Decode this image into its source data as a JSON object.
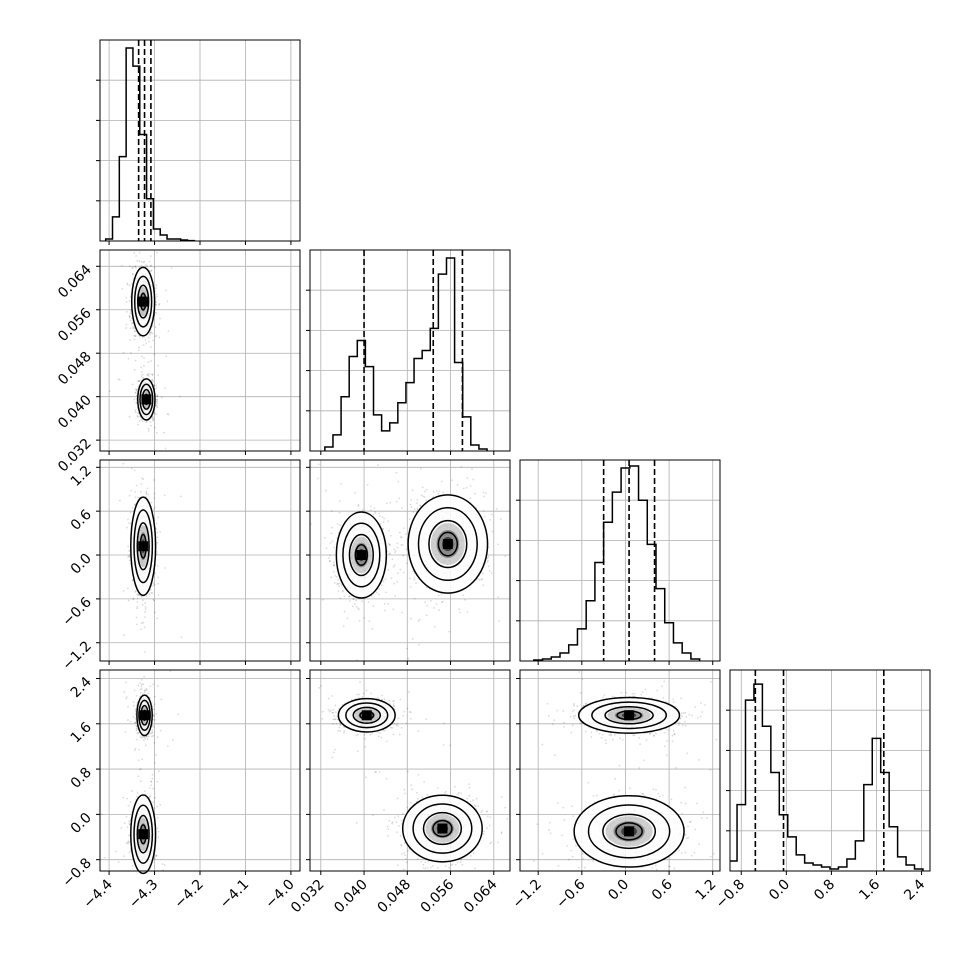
{
  "chart_data": {
    "type": "scatter",
    "params": [
      {
        "ticks": [
          "−4.4",
          "−4.3",
          "−4.2",
          "−4.1",
          "−4.0"
        ],
        "tickvals": [
          -4.4,
          -4.3,
          -4.2,
          -4.1,
          -4.0
        ],
        "range": [
          -4.42,
          -3.98
        ]
      },
      {
        "ticks": [
          "0.032",
          "0.040",
          "0.048",
          "0.056",
          "0.064"
        ],
        "tickvals": [
          0.032,
          0.04,
          0.048,
          0.056,
          0.064
        ],
        "range": [
          0.03,
          0.067
        ]
      },
      {
        "ticks": [
          "−1.2",
          "−0.6",
          "0.0",
          "0.6",
          "1.2"
        ],
        "tickvals": [
          -1.2,
          -0.6,
          0.0,
          0.6,
          1.2
        ],
        "range": [
          -1.45,
          1.3
        ]
      },
      {
        "ticks": [
          "−0.8",
          "0.0",
          "0.8",
          "1.6",
          "2.4"
        ],
        "tickvals": [
          -0.8,
          0.0,
          0.8,
          1.6,
          2.4
        ],
        "range": [
          -1.0,
          2.55
        ]
      }
    ],
    "diagonal": [
      {
        "hist": [
          {
            "x": -4.4,
            "h": 0.01
          },
          {
            "x": -4.385,
            "h": 0.12
          },
          {
            "x": -4.37,
            "h": 0.42
          },
          {
            "x": -4.355,
            "h": 0.96
          },
          {
            "x": -4.34,
            "h": 0.87
          },
          {
            "x": -4.325,
            "h": 0.53
          },
          {
            "x": -4.31,
            "h": 0.21
          },
          {
            "x": -4.295,
            "h": 0.06
          },
          {
            "x": -4.28,
            "h": 0.03
          },
          {
            "x": -4.265,
            "h": 0.01
          },
          {
            "x": -4.25,
            "h": 0.01
          },
          {
            "x": -4.235,
            "h": 0.005
          },
          {
            "x": -4.22,
            "h": 0.002
          }
        ],
        "quantiles": [
          -4.335,
          -4.322,
          -4.308
        ]
      },
      {
        "hist": [
          {
            "x": 0.0335,
            "h": 0.02
          },
          {
            "x": 0.035,
            "h": 0.08
          },
          {
            "x": 0.0365,
            "h": 0.27
          },
          {
            "x": 0.038,
            "h": 0.47
          },
          {
            "x": 0.0395,
            "h": 0.55
          },
          {
            "x": 0.041,
            "h": 0.42
          },
          {
            "x": 0.0425,
            "h": 0.18
          },
          {
            "x": 0.044,
            "h": 0.1
          },
          {
            "x": 0.0455,
            "h": 0.14
          },
          {
            "x": 0.047,
            "h": 0.24
          },
          {
            "x": 0.0485,
            "h": 0.34
          },
          {
            "x": 0.05,
            "h": 0.46
          },
          {
            "x": 0.0515,
            "h": 0.5
          },
          {
            "x": 0.053,
            "h": 0.61
          },
          {
            "x": 0.0545,
            "h": 0.88
          },
          {
            "x": 0.056,
            "h": 0.96
          },
          {
            "x": 0.0575,
            "h": 0.44
          },
          {
            "x": 0.059,
            "h": 0.17
          },
          {
            "x": 0.0605,
            "h": 0.03
          },
          {
            "x": 0.062,
            "h": 0.01
          }
        ],
        "quantiles": [
          0.04,
          0.0528,
          0.0582
        ]
      },
      {
        "hist": [
          {
            "x": -1.2,
            "h": 0.005
          },
          {
            "x": -1.08,
            "h": 0.01
          },
          {
            "x": -0.96,
            "h": 0.02
          },
          {
            "x": -0.84,
            "h": 0.04
          },
          {
            "x": -0.72,
            "h": 0.08
          },
          {
            "x": -0.6,
            "h": 0.16
          },
          {
            "x": -0.48,
            "h": 0.3
          },
          {
            "x": -0.36,
            "h": 0.49
          },
          {
            "x": -0.24,
            "h": 0.69
          },
          {
            "x": -0.12,
            "h": 0.84
          },
          {
            "x": 0.0,
            "h": 0.96
          },
          {
            "x": 0.12,
            "h": 0.97
          },
          {
            "x": 0.24,
            "h": 0.8
          },
          {
            "x": 0.36,
            "h": 0.58
          },
          {
            "x": 0.48,
            "h": 0.36
          },
          {
            "x": 0.6,
            "h": 0.19
          },
          {
            "x": 0.72,
            "h": 0.09
          },
          {
            "x": 0.84,
            "h": 0.04
          },
          {
            "x": 0.96,
            "h": 0.01
          }
        ],
        "quantiles": [
          -0.3,
          0.05,
          0.4
        ]
      },
      {
        "hist": [
          {
            "x": -0.95,
            "h": 0.05
          },
          {
            "x": -0.8,
            "h": 0.33
          },
          {
            "x": -0.65,
            "h": 0.85
          },
          {
            "x": -0.5,
            "h": 0.93
          },
          {
            "x": -0.35,
            "h": 0.72
          },
          {
            "x": -0.2,
            "h": 0.49
          },
          {
            "x": -0.05,
            "h": 0.28
          },
          {
            "x": 0.1,
            "h": 0.17
          },
          {
            "x": 0.25,
            "h": 0.08
          },
          {
            "x": 0.4,
            "h": 0.04
          },
          {
            "x": 0.55,
            "h": 0.03
          },
          {
            "x": 0.7,
            "h": 0.02
          },
          {
            "x": 0.85,
            "h": 0.01
          },
          {
            "x": 1.0,
            "h": 0.02
          },
          {
            "x": 1.15,
            "h": 0.06
          },
          {
            "x": 1.3,
            "h": 0.15
          },
          {
            "x": 1.45,
            "h": 0.43
          },
          {
            "x": 1.6,
            "h": 0.66
          },
          {
            "x": 1.75,
            "h": 0.49
          },
          {
            "x": 1.9,
            "h": 0.22
          },
          {
            "x": 2.05,
            "h": 0.07
          },
          {
            "x": 2.2,
            "h": 0.03
          },
          {
            "x": 2.35,
            "h": 0.01
          }
        ],
        "quantiles": [
          -0.55,
          -0.05,
          1.73
        ]
      }
    ],
    "joint": [
      {
        "pair": [
          0,
          1
        ],
        "modes": [
          {
            "cx": -4.325,
            "cy": 0.0575,
            "sx": 0.012,
            "sy": 0.003
          },
          {
            "cx": -4.318,
            "cy": 0.0395,
            "sx": 0.009,
            "sy": 0.0018
          }
        ]
      },
      {
        "pair": [
          0,
          2
        ],
        "modes": [
          {
            "cx": -4.325,
            "cy": 0.12,
            "sx": 0.013,
            "sy": 0.32
          }
        ]
      },
      {
        "pair": [
          1,
          2
        ],
        "modes": [
          {
            "cx": 0.0395,
            "cy": 0.0,
            "sx": 0.0022,
            "sy": 0.28
          },
          {
            "cx": 0.0555,
            "cy": 0.15,
            "sx": 0.0035,
            "sy": 0.32
          }
        ]
      },
      {
        "pair": [
          0,
          3
        ],
        "modes": [
          {
            "cx": -4.322,
            "cy": 1.75,
            "sx": 0.008,
            "sy": 0.17
          },
          {
            "cx": -4.325,
            "cy": -0.35,
            "sx": 0.013,
            "sy": 0.33
          }
        ]
      },
      {
        "pair": [
          1,
          3
        ],
        "modes": [
          {
            "cx": 0.0405,
            "cy": 1.75,
            "sx": 0.0025,
            "sy": 0.14
          },
          {
            "cx": 0.0545,
            "cy": -0.25,
            "sx": 0.0035,
            "sy": 0.28
          }
        ]
      },
      {
        "pair": [
          2,
          3
        ],
        "modes": [
          {
            "cx": 0.05,
            "cy": 1.75,
            "sx": 0.33,
            "sy": 0.15
          },
          {
            "cx": 0.05,
            "cy": -0.3,
            "sx": 0.36,
            "sy": 0.3
          }
        ]
      }
    ]
  }
}
